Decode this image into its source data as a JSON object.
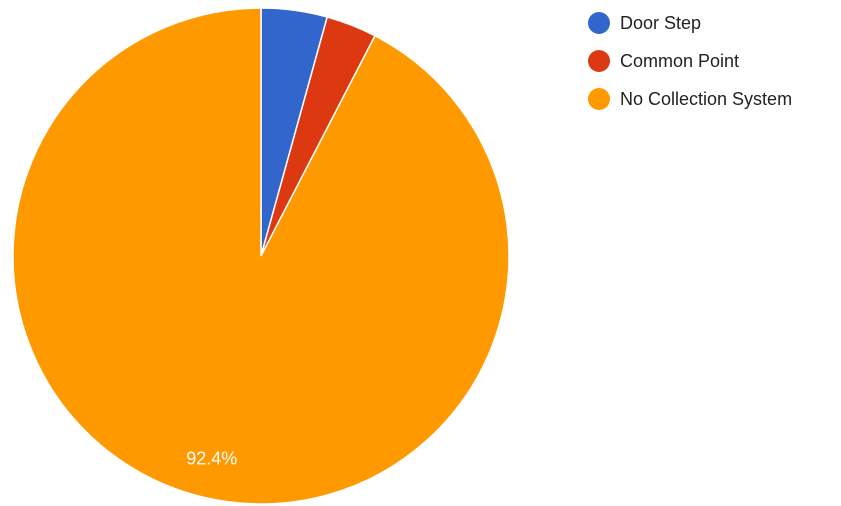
{
  "chart_data": {
    "type": "pie",
    "title": "",
    "start_angle_deg": 0,
    "direction": "clockwise",
    "legend_position": "top-right",
    "slices": [
      {
        "label": "Door Step",
        "value": 4.3,
        "color": "#3366cc",
        "data_label": ""
      },
      {
        "label": "Common Point",
        "value": 3.3,
        "color": "#dc3912",
        "data_label": ""
      },
      {
        "label": "No Collection System",
        "value": 92.4,
        "color": "#ff9900",
        "data_label": "92.4%"
      }
    ]
  }
}
